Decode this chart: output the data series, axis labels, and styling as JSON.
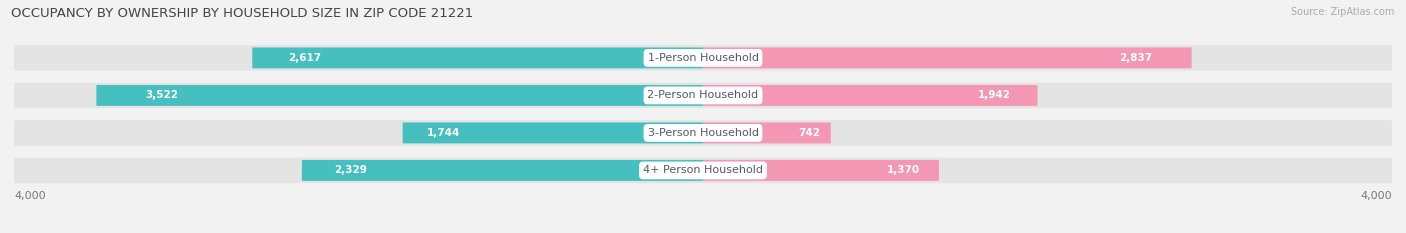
{
  "title": "OCCUPANCY BY OWNERSHIP BY HOUSEHOLD SIZE IN ZIP CODE 21221",
  "source": "Source: ZipAtlas.com",
  "categories": [
    "1-Person Household",
    "2-Person Household",
    "3-Person Household",
    "4+ Person Household"
  ],
  "owner_values": [
    2617,
    3522,
    1744,
    2329
  ],
  "renter_values": [
    2837,
    1942,
    742,
    1370
  ],
  "owner_color": "#45BFBF",
  "renter_color": "#F497B5",
  "background_color": "#f2f2f2",
  "bar_bg_color": "#e4e4e4",
  "label_color": "#555577",
  "value_color_white": "#ffffff",
  "value_color_dark": "#888888",
  "xlim": 4000,
  "title_fontsize": 9.5,
  "bar_label_fontsize": 7.5,
  "cat_label_fontsize": 8,
  "tick_fontsize": 8,
  "source_fontsize": 7
}
